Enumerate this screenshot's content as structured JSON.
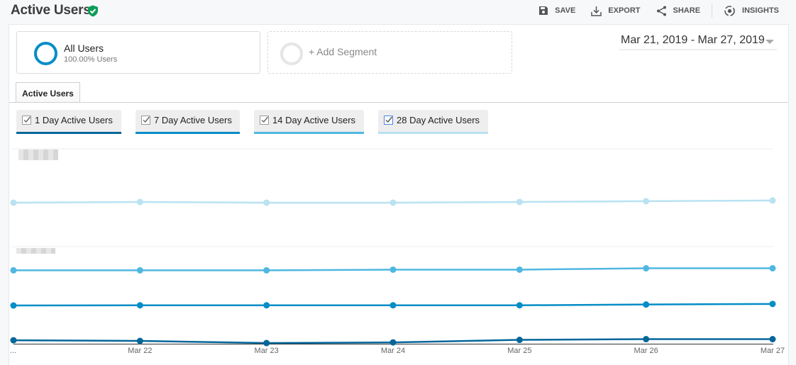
{
  "header": {
    "title": "Active Users",
    "verified_icon": "verified-shield-icon",
    "actions": [
      {
        "label": "SAVE",
        "icon": "save-icon"
      },
      {
        "label": "EXPORT",
        "icon": "export-icon"
      },
      {
        "label": "SHARE",
        "icon": "share-icon"
      },
      {
        "label": "INSIGHTS",
        "icon": "insights-icon"
      }
    ]
  },
  "segments": {
    "active": {
      "name": "All Users",
      "subtitle": "100.00% Users",
      "color": "#058dc7"
    },
    "add_label": "+ Add Segment"
  },
  "date_range": {
    "label": "Mar 21, 2019 - Mar 27, 2019"
  },
  "tabs": [
    {
      "label": "Active Users",
      "selected": true
    }
  ],
  "metrics": [
    {
      "label": "1 Day Active Users",
      "checked": true,
      "color": "#05669a"
    },
    {
      "label": "7 Day Active Users",
      "checked": true,
      "color": "#058dc7"
    },
    {
      "label": "14 Day Active Users",
      "checked": true,
      "color": "#50b8e0"
    },
    {
      "label": "28 Day Active Users",
      "checked": true,
      "color": "#b9e2f2"
    }
  ],
  "chart_data": {
    "type": "line",
    "title": "Active Users",
    "x": [
      "...",
      "Mar 22",
      "Mar 23",
      "Mar 24",
      "Mar 25",
      "Mar 26",
      "Mar 27"
    ],
    "xlabel": "",
    "ylabel": "",
    "y_tick_labels": "obscured (blurred in screenshot)",
    "grid": true,
    "legend_position": "top (metric checkboxes)",
    "note": "Y-axis values are blurred; values below are relative heights (0 = x-axis baseline, 100 = top gridline) estimated from pixel positions.",
    "series": [
      {
        "name": "1 Day Active Users",
        "color": "#05669a",
        "values": [
          3.6,
          2.9,
          0.7,
          1.4,
          4.0,
          4.7,
          4.7
        ]
      },
      {
        "name": "7 Day Active Users",
        "color": "#058dc7",
        "values": [
          39.4,
          39.6,
          39.6,
          39.6,
          39.6,
          40.4,
          41.0
        ]
      },
      {
        "name": "14 Day Active Users",
        "color": "#50b8e0",
        "values": [
          75.6,
          75.6,
          75.6,
          76.3,
          76.3,
          77.7,
          77.7
        ]
      },
      {
        "name": "28 Day Active Users",
        "color": "#b9e2f2",
        "values": [
          145.3,
          146.0,
          145.3,
          145.3,
          146.0,
          146.8,
          147.5
        ]
      }
    ]
  }
}
